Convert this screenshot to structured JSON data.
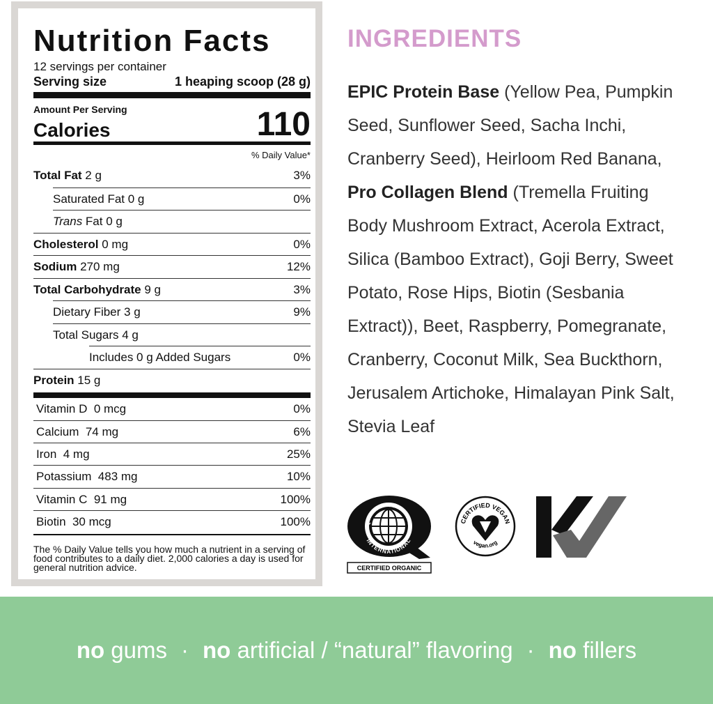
{
  "nutrition": {
    "title": "Nutrition Facts",
    "servings": "12 servings per container",
    "serving_size_label": "Serving size",
    "serving_size_value": "1 heaping scoop (28 g)",
    "amount_per_serving": "Amount Per Serving",
    "calories_label": "Calories",
    "calories_value": "110",
    "daily_value_header": "% Daily Value*",
    "rows": [
      {
        "name": "Total Fat",
        "amount": " 2 g",
        "dv": "3%"
      },
      {
        "name": "Saturated Fat 0 g",
        "amount": "",
        "dv": "0%"
      },
      {
        "name": "Trans",
        "amount": " Fat 0 g",
        "dv": ""
      },
      {
        "name": "Cholesterol",
        "amount": " 0 mg",
        "dv": "0%"
      },
      {
        "name": "Sodium",
        "amount": " 270 mg",
        "dv": "12%"
      },
      {
        "name": "Total Carbohydrate",
        "amount": " 9 g",
        "dv": "3%"
      },
      {
        "name": "Dietary Fiber 3 g",
        "amount": "",
        "dv": "9%"
      },
      {
        "name": "Total Sugars 4 g",
        "amount": "",
        "dv": ""
      },
      {
        "name": "Includes 0 g Added Sugars",
        "amount": "",
        "dv": "0%"
      },
      {
        "name": "Protein",
        "amount": " 15 g",
        "dv": ""
      }
    ],
    "vitamins": [
      {
        "name": "Vitamin D  0 mcg",
        "dv": "0%"
      },
      {
        "name": "Calcium  74 mg",
        "dv": "6%"
      },
      {
        "name": "Iron  4 mg",
        "dv": "25%"
      },
      {
        "name": "Potassium  483 mg",
        "dv": "10%"
      },
      {
        "name": "Vitamin C  91 mg",
        "dv": "100%"
      },
      {
        "name": "Biotin  30 mcg",
        "dv": "100%"
      }
    ],
    "footnote": "The % Daily Value tells you how much a nutrient in a serving of food contributes to a daily diet. 2,000 calories a day is used for general nutrition advice."
  },
  "ingredients": {
    "heading": "INGREDIENTS",
    "blend1_name": "EPIC Protein Base",
    "blend1_text": " (Yellow Pea, Pumpkin Seed, Sunflower Seed, Sacha Inchi, Cranberry Seed), Heirloom Red Banana, ",
    "blend2_name": "Pro Collagen Blend",
    "blend2_text": " (Tremella Fruiting Body Mushroom Extract, Acerola Extract, Silica (Bamboo Extract), Goji Berry, Sweet Potato, Rose Hips, Biotin (Sesbania Extract)), Beet, Raspberry, Pomegranate, Cranberry, Coconut Milk, Sea Buckthorn, Jerusalem Artichoke, Himalayan Pink Salt, Stevia Leaf"
  },
  "logos": {
    "qai": {
      "text_top": "QUALITY ASSURANCE",
      "text_bottom": "INTERNATIONAL",
      "caption": "CERTIFIED ORGANIC"
    },
    "vegan": {
      "text_top": "CERTIFIED VEGAN",
      "text_bottom": "vegan.org"
    },
    "kv": {
      "icon": "kv-checkmark-logo"
    }
  },
  "banner": {
    "item1_bold": "no",
    "item1_rest": " gums",
    "sep": "·",
    "item2_bold": "no",
    "item2_rest": " artificial / “natural” flavoring",
    "item3_bold": "no",
    "item3_rest": " fillers",
    "color": "#8fcb97"
  },
  "colors": {
    "heading": "#d49bcc",
    "frame": "#dad7d4"
  }
}
